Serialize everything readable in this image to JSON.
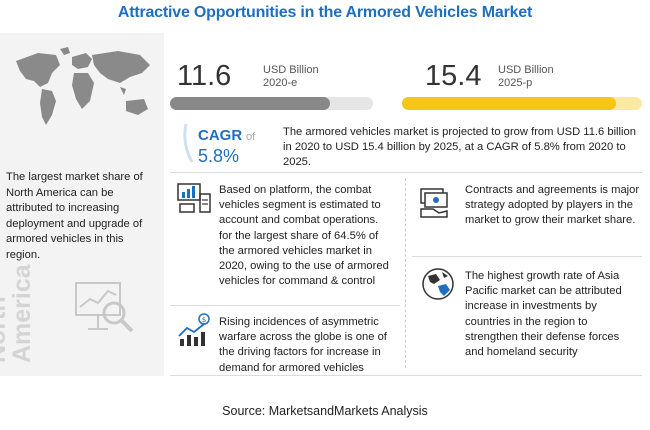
{
  "title": "Attractive Opportunities in the Armored Vehicles Market",
  "region": {
    "text": "The largest market share of North America can be attributed to increasing deployment and upgrade of armored vehicles in this region.",
    "label_line1": "North",
    "label_line2": "America",
    "map_icon": "world-map",
    "chart_icon": "magnifier-chart-icon"
  },
  "market": {
    "value_2020": "11.6",
    "unit_2020": "USD Billion",
    "year_2020": "2020-e",
    "value_2025": "15.4",
    "unit_2025": "USD Billion",
    "year_2025": "2025-p",
    "bar_2020_fraction": 0.79,
    "bar_2025_fraction": 0.89,
    "colors": {
      "bar_2020": "#888888",
      "bar_2025": "#f5c518",
      "accent": "#1f6fc1"
    }
  },
  "cagr": {
    "label": "CAGR",
    "of": "of",
    "value": "5.8%",
    "text": "The armored vehicles market is projected to grow from USD 11.6 billion in 2020 to USD 15.4 billion by 2025, at a CAGR of 5.8% from 2020 to 2025."
  },
  "cards": [
    {
      "icon": "platform-chart-icon",
      "text": "Based on platform, the combat vehicles segment is estimated to account and combat operations. for the largest share of 64.5% of the armored vehicles market in 2020, owing to the use of armored vehicles for command & control"
    },
    {
      "icon": "contract-money-icon",
      "text": "Contracts and agreements is major strategy adopted by players in the market to grow their market share."
    },
    {
      "icon": "growth-bars-icon",
      "text": "Rising incidences of asymmetric warfare across the globe is one of the driving factors for increase in demand for armored vehicles"
    },
    {
      "icon": "globe-icon",
      "text": "The highest growth rate of Asia Pacific market can be attributed increase in investments by countries in the region to strengthen their defense forces and homeland security"
    }
  ],
  "source": "Source: MarketsandMarkets Analysis"
}
